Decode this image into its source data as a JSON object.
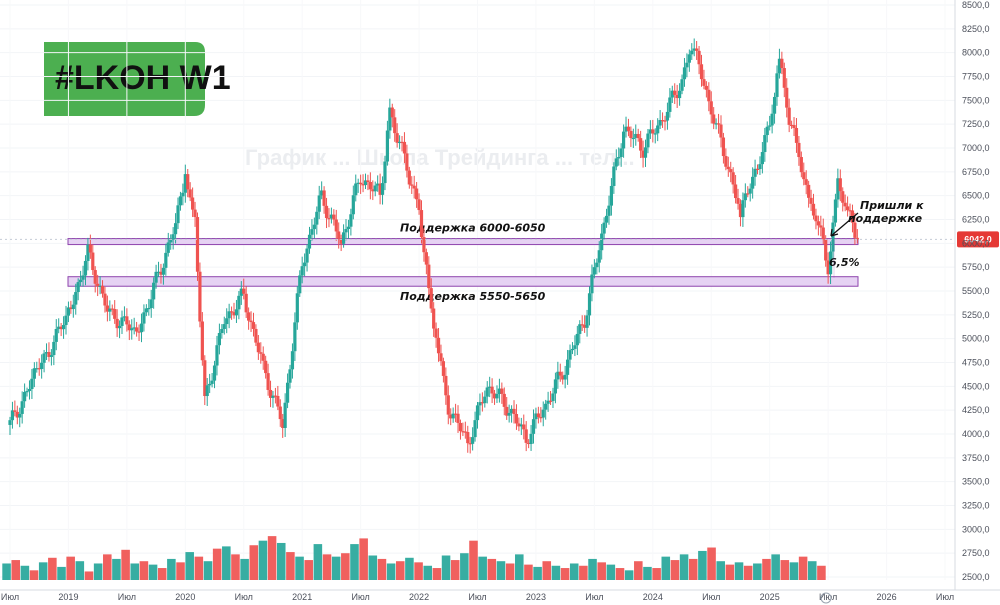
{
  "chart_data": {
    "type": "candlestick",
    "title": "#LKOH W1",
    "watermark": "График ... Школа Трейдинга ... тел...",
    "y_axis": {
      "ticks": [
        "8500,0",
        "8250,0",
        "8000,0",
        "7750,0",
        "7500,0",
        "7250,0",
        "7000,0",
        "6750,0",
        "6500,0",
        "6250,0",
        "6000,0",
        "5750,0",
        "5500,0",
        "5250,0",
        "5000,0",
        "4750,0",
        "4500,0",
        "4250,0",
        "4000,0",
        "3750,0",
        "3500,0",
        "3250,0",
        "3000,0",
        "2750,0",
        "2500,0"
      ],
      "range": [
        2500,
        8500
      ],
      "current_price": "6042,0",
      "current_price_color": "#e53935"
    },
    "x_axis": {
      "ticks": [
        "Июл",
        "2019",
        "Июл",
        "2020",
        "Июл",
        "2021",
        "Июл",
        "2022",
        "Июл",
        "2023",
        "Июл",
        "2024",
        "Июл",
        "2025",
        "Июл",
        "2026",
        "Июл"
      ],
      "range": [
        "2018-07",
        "2026-07"
      ]
    },
    "support_levels": [
      {
        "label": "Поддержка 6000-6050",
        "range": [
          6000,
          6050
        ],
        "color": "#e1c8f0"
      },
      {
        "label": "Поддержка 5550-5650",
        "range": [
          5550,
          5650
        ],
        "color": "#e1c8f0"
      }
    ],
    "annotations": [
      {
        "text": "Пришли к",
        "type": "note"
      },
      {
        "text": "поддержке",
        "type": "note"
      },
      {
        "text": "6,5%",
        "type": "percent"
      }
    ],
    "series": [
      {
        "name": "price",
        "points": [
          {
            "x": "2018-07",
            "y": 4100
          },
          {
            "x": "2018-10",
            "y": 4700
          },
          {
            "x": "2019-01",
            "y": 5250
          },
          {
            "x": "2019-03",
            "y": 5900
          },
          {
            "x": "2019-05",
            "y": 5300
          },
          {
            "x": "2019-08",
            "y": 5050
          },
          {
            "x": "2019-10",
            "y": 5600
          },
          {
            "x": "2019-12",
            "y": 6200
          },
          {
            "x": "2020-01",
            "y": 6750
          },
          {
            "x": "2020-02",
            "y": 6200
          },
          {
            "x": "2020-03",
            "y": 4350
          },
          {
            "x": "2020-05",
            "y": 5200
          },
          {
            "x": "2020-07",
            "y": 5450
          },
          {
            "x": "2020-09",
            "y": 4700
          },
          {
            "x": "2020-11",
            "y": 4100
          },
          {
            "x": "2021-01",
            "y": 5800
          },
          {
            "x": "2021-03",
            "y": 6500
          },
          {
            "x": "2021-05",
            "y": 6000
          },
          {
            "x": "2021-07",
            "y": 6700
          },
          {
            "x": "2021-09",
            "y": 6500
          },
          {
            "x": "2021-10",
            "y": 7400
          },
          {
            "x": "2021-12",
            "y": 6700
          },
          {
            "x": "2022-01",
            "y": 6400
          },
          {
            "x": "2022-02",
            "y": 5500
          },
          {
            "x": "2022-03",
            "y": 4900
          },
          {
            "x": "2022-04",
            "y": 4300
          },
          {
            "x": "2022-06",
            "y": 3900
          },
          {
            "x": "2022-08",
            "y": 4500
          },
          {
            "x": "2022-10",
            "y": 4300
          },
          {
            "x": "2022-12",
            "y": 3950
          },
          {
            "x": "2023-02",
            "y": 4300
          },
          {
            "x": "2023-04",
            "y": 4700
          },
          {
            "x": "2023-06",
            "y": 5200
          },
          {
            "x": "2023-08",
            "y": 6200
          },
          {
            "x": "2023-10",
            "y": 7200
          },
          {
            "x": "2023-12",
            "y": 7000
          },
          {
            "x": "2024-02",
            "y": 7300
          },
          {
            "x": "2024-04",
            "y": 7700
          },
          {
            "x": "2024-05",
            "y": 8100
          },
          {
            "x": "2024-07",
            "y": 7400
          },
          {
            "x": "2024-09",
            "y": 6700
          },
          {
            "x": "2024-10",
            "y": 6300
          },
          {
            "x": "2024-12",
            "y": 6900
          },
          {
            "x": "2025-01",
            "y": 7200
          },
          {
            "x": "2025-02",
            "y": 7900
          },
          {
            "x": "2025-03",
            "y": 7300
          },
          {
            "x": "2025-04",
            "y": 6900
          },
          {
            "x": "2025-05",
            "y": 6400
          },
          {
            "x": "2025-06",
            "y": 6200
          },
          {
            "x": "2025-07",
            "y": 5700
          },
          {
            "x": "2025-08",
            "y": 6600
          },
          {
            "x": "2025-09",
            "y": 6300
          },
          {
            "x": "2025-10",
            "y": 6042
          }
        ]
      }
    ],
    "volume": {
      "range": [
        0,
        1
      ],
      "values": [
        0.18,
        0.21,
        0.16,
        0.12,
        0.19,
        0.23,
        0.15,
        0.24,
        0.2,
        0.11,
        0.18,
        0.26,
        0.22,
        0.3,
        0.18,
        0.2,
        0.17,
        0.14,
        0.22,
        0.19,
        0.28,
        0.24,
        0.2,
        0.31,
        0.33,
        0.26,
        0.22,
        0.34,
        0.38,
        0.42,
        0.36,
        0.28,
        0.24,
        0.21,
        0.35,
        0.26,
        0.24,
        0.27,
        0.35,
        0.4,
        0.25,
        0.22,
        0.18,
        0.2,
        0.23,
        0.19,
        0.16,
        0.14,
        0.25,
        0.21,
        0.27,
        0.38,
        0.24,
        0.22,
        0.2,
        0.18,
        0.26,
        0.17,
        0.15,
        0.2,
        0.16,
        0.14,
        0.18,
        0.16,
        0.22,
        0.19,
        0.17,
        0.14,
        0.12,
        0.2,
        0.15,
        0.14,
        0.24,
        0.21,
        0.26,
        0.22,
        0.29,
        0.32,
        0.2,
        0.17,
        0.19,
        0.16,
        0.18,
        0.22,
        0.26,
        0.21,
        0.19,
        0.24,
        0.2,
        0.16
      ],
      "colors": [
        "#26a69a",
        "#ef5350"
      ]
    }
  }
}
